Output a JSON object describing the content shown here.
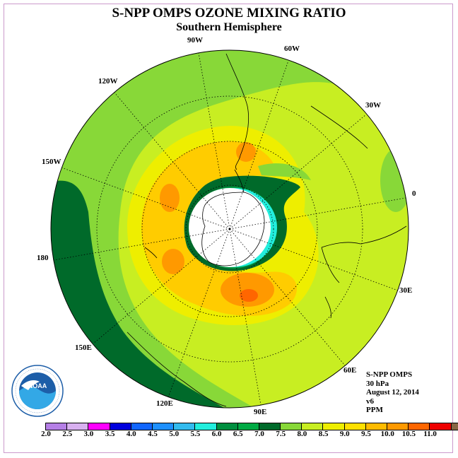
{
  "title": "S-NPP OMPS OZONE MIXING RATIO",
  "subtitle": "Southern Hemisphere",
  "longitude_labels": {
    "lon_90w": "90W",
    "lon_60w": "60W",
    "lon_120w": "120W",
    "lon_30w": "30W",
    "lon_150w": "150W",
    "lon_0": "0",
    "lon_180": "180",
    "lon_30e": "30E",
    "lon_150e": "150E",
    "lon_60e": "60E",
    "lon_120e": "120E",
    "lon_90e": "90E"
  },
  "info": {
    "instrument": "S-NPP OMPS",
    "level": "30 hPa",
    "date": "August 12, 2014",
    "version": "v6",
    "units": "PPM"
  },
  "colorbar": {
    "colors": [
      "#b57fe6",
      "#d8b0f0",
      "#ff00ff",
      "#0000dd",
      "#1166ff",
      "#1e90ff",
      "#33bbee",
      "#22eedd",
      "#008f3f",
      "#00aa44",
      "#006a2a",
      "#88d838",
      "#c8ee22",
      "#eeee00",
      "#ffe000",
      "#ffbb00",
      "#ff9900",
      "#ff6600",
      "#ee0000",
      "#886644"
    ],
    "tick_labels": [
      "2.0",
      "2.5",
      "3.0",
      "3.5",
      "4.0",
      "4.5",
      "5.0",
      "5.5",
      "6.0",
      "6.5",
      "7.0",
      "7.5",
      "8.0",
      "8.5",
      "9.0",
      "9.5",
      "10.0",
      "10.5",
      "11.0"
    ]
  },
  "colors": {
    "dark_green": "#006a2a",
    "green": "#88d838",
    "yellow_green": "#c8ee22",
    "yellow": "#eeee00",
    "gold": "#ffcc00",
    "orange": "#ff9900",
    "dark_orange": "#ff6600",
    "cyan": "#22eedd",
    "mid_green": "#009944",
    "frame": "#cc99cc"
  }
}
